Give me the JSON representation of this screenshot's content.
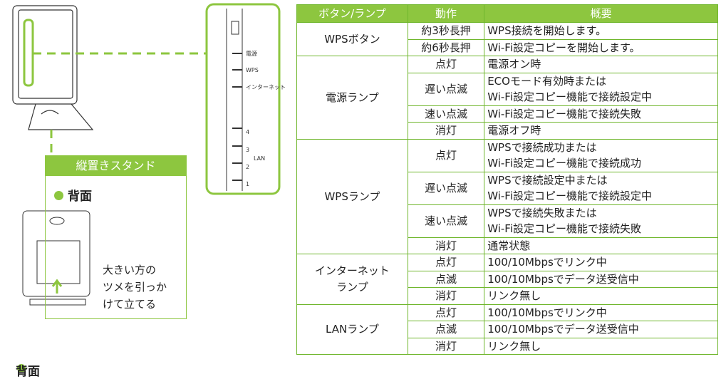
{
  "panel": {
    "labels": [
      "電源",
      "WPS",
      "インターネット",
      "4",
      "3",
      "LAN",
      "2",
      "1"
    ]
  },
  "stand": {
    "title": "縦置きスタンド",
    "heading": "背面",
    "caption": [
      "大きい方の",
      "ツメを引っか",
      "けて立てる"
    ]
  },
  "footer_heading": "背面",
  "table": {
    "header": [
      "ボタン/ランプ",
      "動作",
      "概要"
    ],
    "groups": [
      {
        "name": [
          "WPSボタン"
        ],
        "rows": [
          {
            "action": "約3秒長押",
            "desc": [
              "WPS接続を開始します。"
            ]
          },
          {
            "action": "約6秒長押",
            "desc": [
              "Wi-Fi設定コピーを開始します。"
            ]
          }
        ]
      },
      {
        "name": [
          "電源ランプ"
        ],
        "rows": [
          {
            "action": "点灯",
            "desc": [
              "電源オン時"
            ]
          },
          {
            "action": "遅い点滅",
            "desc": [
              "ECOモード有効時または",
              "Wi-Fi設定コピー機能で接続設定中"
            ]
          },
          {
            "action": "速い点滅",
            "desc": [
              "Wi-Fi設定コピー機能で接続失敗"
            ]
          },
          {
            "action": "消灯",
            "desc": [
              "電源オフ時"
            ]
          }
        ]
      },
      {
        "name": [
          "WPSランプ"
        ],
        "rows": [
          {
            "action": "点灯",
            "desc": [
              "WPSで接続成功または",
              "Wi-Fi設定コピー機能で接続成功"
            ]
          },
          {
            "action": "遅い点滅",
            "desc": [
              "WPSで接続設定中または",
              "Wi-Fi設定コピー機能で接続設定中"
            ]
          },
          {
            "action": "速い点滅",
            "desc": [
              "WPSで接続失敗または",
              "Wi-Fi設定コピー機能で接続失敗"
            ]
          },
          {
            "action": "消灯",
            "desc": [
              "通常状態"
            ]
          }
        ]
      },
      {
        "name": [
          "インターネット",
          "ランプ"
        ],
        "rows": [
          {
            "action": "点灯",
            "desc": [
              "100/10Mbpsでリンク中"
            ]
          },
          {
            "action": "点滅",
            "desc": [
              "100/10Mbpsでデータ送受信中"
            ]
          },
          {
            "action": "消灯",
            "desc": [
              "リンク無し"
            ]
          }
        ]
      },
      {
        "name": [
          "LANランプ"
        ],
        "rows": [
          {
            "action": "点灯",
            "desc": [
              "100/10Mbpsでリンク中"
            ]
          },
          {
            "action": "点滅",
            "desc": [
              "100/10Mbpsでデータ送受信中"
            ]
          },
          {
            "action": "消灯",
            "desc": [
              "リンク無し"
            ]
          }
        ]
      }
    ]
  }
}
